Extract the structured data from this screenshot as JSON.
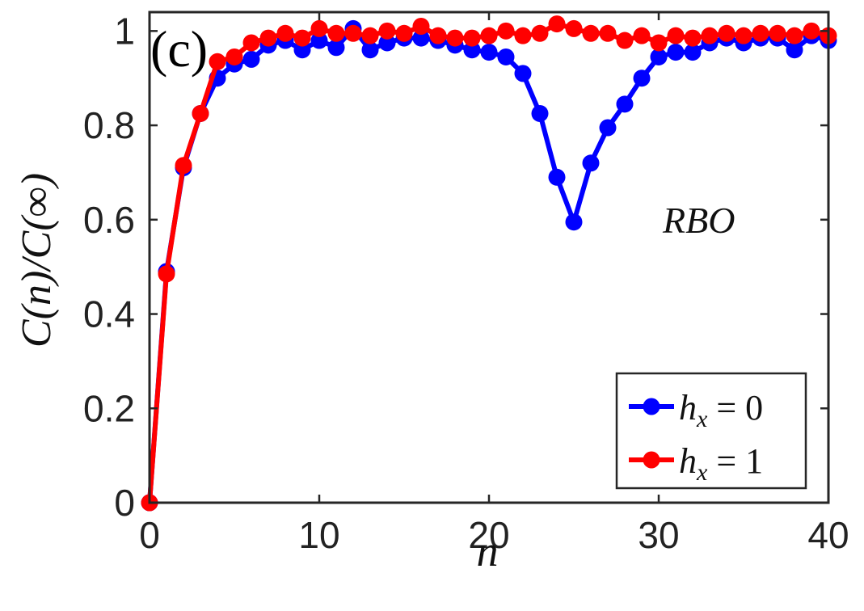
{
  "chart_data": {
    "type": "line",
    "panel_label": "(c)",
    "annotation": "RBO",
    "xlabel": "n",
    "ylabel": "C(n)/C(∞)",
    "xlim": [
      0,
      40
    ],
    "ylim": [
      0,
      1.04
    ],
    "xticks": [
      0,
      10,
      20,
      30,
      40
    ],
    "yticks": [
      0,
      0.2,
      0.4,
      0.6,
      0.8,
      1
    ],
    "xtick_labels": [
      "0",
      "10",
      "20",
      "30",
      "40"
    ],
    "ytick_labels": [
      "0",
      "0.2",
      "0.4",
      "0.6",
      "0.8",
      "1"
    ],
    "grid": false,
    "legend_position": "bottom-right",
    "x": [
      0,
      1,
      2,
      3,
      4,
      5,
      6,
      7,
      8,
      9,
      10,
      11,
      12,
      13,
      14,
      15,
      16,
      17,
      18,
      19,
      20,
      21,
      22,
      23,
      24,
      25,
      26,
      27,
      28,
      29,
      30,
      31,
      32,
      33,
      34,
      35,
      36,
      37,
      38,
      39,
      40
    ],
    "series": [
      {
        "name": "h_x = 0",
        "legend_label": {
          "var": "h",
          "sub": "x",
          "rest": " = 0"
        },
        "color": "#0000ff",
        "values": [
          0,
          0.49,
          0.71,
          0.825,
          0.9,
          0.93,
          0.94,
          0.97,
          0.98,
          0.96,
          0.98,
          0.965,
          1.005,
          0.96,
          0.975,
          0.985,
          0.985,
          0.98,
          0.97,
          0.96,
          0.955,
          0.945,
          0.91,
          0.825,
          0.69,
          0.595,
          0.72,
          0.795,
          0.845,
          0.9,
          0.945,
          0.955,
          0.955,
          0.975,
          0.985,
          0.975,
          0.985,
          0.985,
          0.96,
          0.99,
          0.98
        ]
      },
      {
        "name": "h_x = 1",
        "legend_label": {
          "var": "h",
          "sub": "x",
          "rest": " = 1"
        },
        "color": "#ff0000",
        "values": [
          0,
          0.485,
          0.715,
          0.825,
          0.935,
          0.945,
          0.975,
          0.985,
          0.995,
          0.985,
          1.005,
          0.995,
          0.995,
          0.99,
          1.0,
          0.995,
          1.01,
          0.99,
          0.985,
          0.985,
          0.99,
          1.0,
          0.99,
          0.995,
          1.015,
          1.005,
          0.995,
          0.995,
          0.98,
          0.99,
          0.975,
          0.99,
          0.985,
          0.99,
          0.995,
          0.99,
          0.995,
          0.995,
          0.99,
          1.0,
          0.99
        ]
      }
    ]
  }
}
